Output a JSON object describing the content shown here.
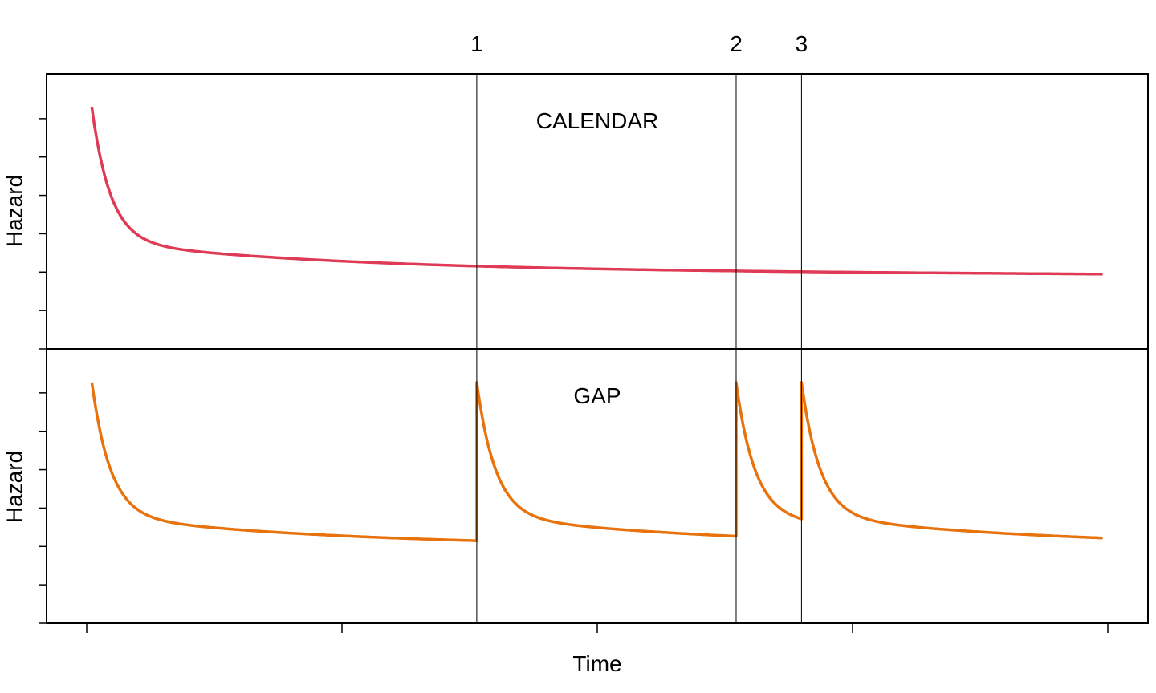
{
  "chart_data": {
    "type": "line",
    "xlabel": "Time",
    "event_marks": [
      {
        "label": "1",
        "x": 0.382
      },
      {
        "label": "2",
        "x": 0.636
      },
      {
        "label": "3",
        "x": 0.7
      }
    ],
    "panels": [
      {
        "label": "CALENDAR",
        "ylabel": "Hazard",
        "color": "#df3b57",
        "series_kind": "calendar"
      },
      {
        "label": "GAP",
        "ylabel": "Hazard",
        "color": "#e8720c",
        "series_kind": "gap"
      }
    ],
    "x_range": [
      0,
      1
    ],
    "x_ticks": [
      0,
      0.25,
      0.5,
      0.75,
      1
    ],
    "y_ticks_count": 7,
    "y_range": [
      0,
      1
    ],
    "grid": false
  }
}
